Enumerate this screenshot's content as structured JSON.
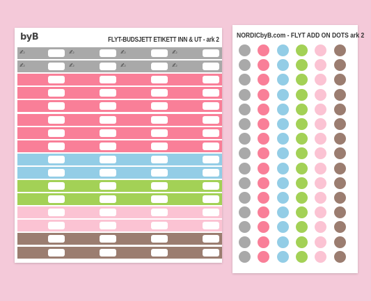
{
  "left_sheet": {
    "logo": "byB",
    "title": "FLYT-BUDSJETT ETIKETT INN & UT - ark 2",
    "pen_glyph": "✍",
    "strip_colors": [
      "#a9a9a9",
      "#a9a9a9",
      "#f97f98",
      "#f97f98",
      "#f97f98",
      "#f97f98",
      "#f97f98",
      "#f97f98",
      "#93cde6",
      "#93cde6",
      "#a3d156",
      "#a3d156",
      "#fbc3d3",
      "#fbc3d3",
      "#9b7d70",
      "#9b7d70"
    ]
  },
  "right_sheet": {
    "title": "NORDICbyB.com - FLYT ADD ON DOTS ark 2",
    "dot_colors": [
      "#a9a9a9",
      "#f97f98",
      "#93cde6",
      "#a3d156",
      "#fbc3d3",
      "#9b7d70"
    ],
    "rows": 15
  }
}
